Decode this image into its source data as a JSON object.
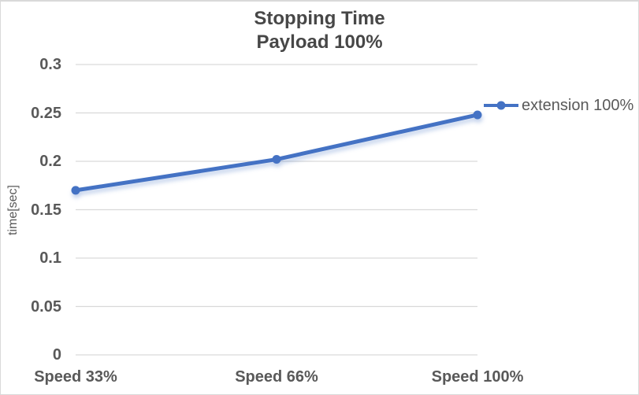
{
  "chart_data": {
    "type": "line",
    "title": "Stopping Time Payload 100%",
    "title_lines": [
      "Stopping Time",
      "Payload 100%"
    ],
    "categories": [
      "Speed 33%",
      "Speed 66%",
      "Speed 100%"
    ],
    "series": [
      {
        "name": "extension 100%",
        "values": [
          0.17,
          0.202,
          0.248
        ]
      }
    ],
    "xlabel": "",
    "ylabel": "time[sec]",
    "ylim": [
      0,
      0.3
    ],
    "ytick_step": 0.05,
    "yticks": [
      "0",
      "0.05",
      "0.1",
      "0.15",
      "0.2",
      "0.25",
      "0.3"
    ],
    "grid": "horizontal-only",
    "legend_position": "right-middle",
    "marker": "circle",
    "colors": {
      "line": "#4472C4",
      "gridline": "#D9D9D9",
      "axis_text": "#595959",
      "title_text": "#474747",
      "chart_border": "#D9D9D9",
      "background": "#FFFFFF"
    }
  }
}
